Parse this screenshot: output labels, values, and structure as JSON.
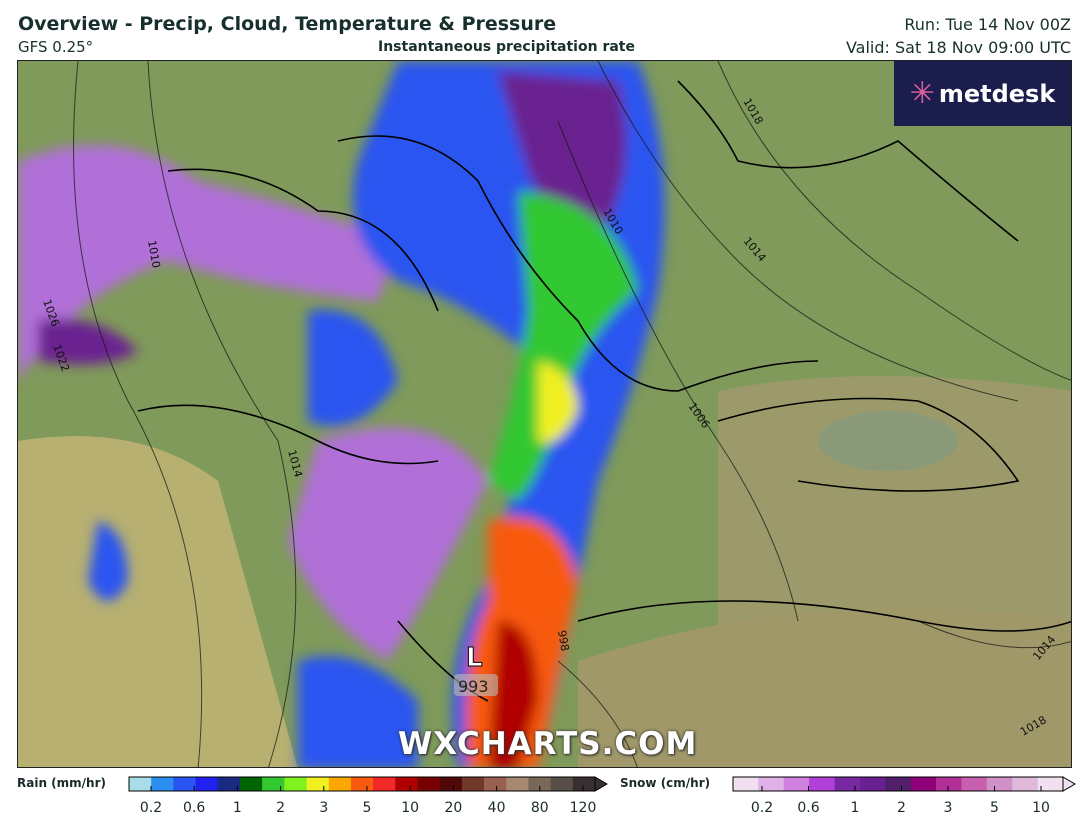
{
  "header": {
    "title": "Overview - Precip, Cloud, Temperature & Pressure",
    "model": "GFS 0.25°",
    "subtitle": "Instantaneous precipitation rate",
    "run": "Run: Tue 14 Nov 00Z",
    "valid": "Valid: Sat 18 Nov 09:00 UTC"
  },
  "map": {
    "logo": "metdesk",
    "watermark": "WXCHARTS.COM",
    "low": {
      "symbol": "L",
      "value": "993"
    },
    "isobar_labels": [
      "1018",
      "1010",
      "1014",
      "1006",
      "998",
      "1014",
      "1018",
      "1026",
      "1022",
      "1010",
      "1014"
    ]
  },
  "legend": {
    "rain": {
      "label": "Rain (mm/hr)",
      "ticks": [
        "0.2",
        "0.6",
        "1",
        "2",
        "3",
        "5",
        "10",
        "20",
        "40",
        "80",
        "120"
      ],
      "colors": [
        "#a8dce8",
        "#2b8ff0",
        "#2a55f0",
        "#2020f0",
        "#1a2a80",
        "#006400",
        "#32c832",
        "#80f020",
        "#f0f020",
        "#f8a800",
        "#f85a10",
        "#f02828",
        "#b00000",
        "#780000",
        "#500808",
        "#703828",
        "#986050",
        "#a88870",
        "#786858",
        "#585048",
        "#383030"
      ]
    },
    "snow": {
      "label": "Snow (cm/hr)",
      "ticks": [
        "0.2",
        "0.6",
        "1",
        "2",
        "3",
        "5",
        "10"
      ],
      "colors": [
        "#f0e0f0",
        "#e0b0e8",
        "#d080e0",
        "#b040d8",
        "#7828a0",
        "#6a2090",
        "#50206a",
        "#900078",
        "#b03098",
        "#c860b0",
        "#d090c8",
        "#e0b8dc",
        "#f0e0f0"
      ]
    }
  }
}
